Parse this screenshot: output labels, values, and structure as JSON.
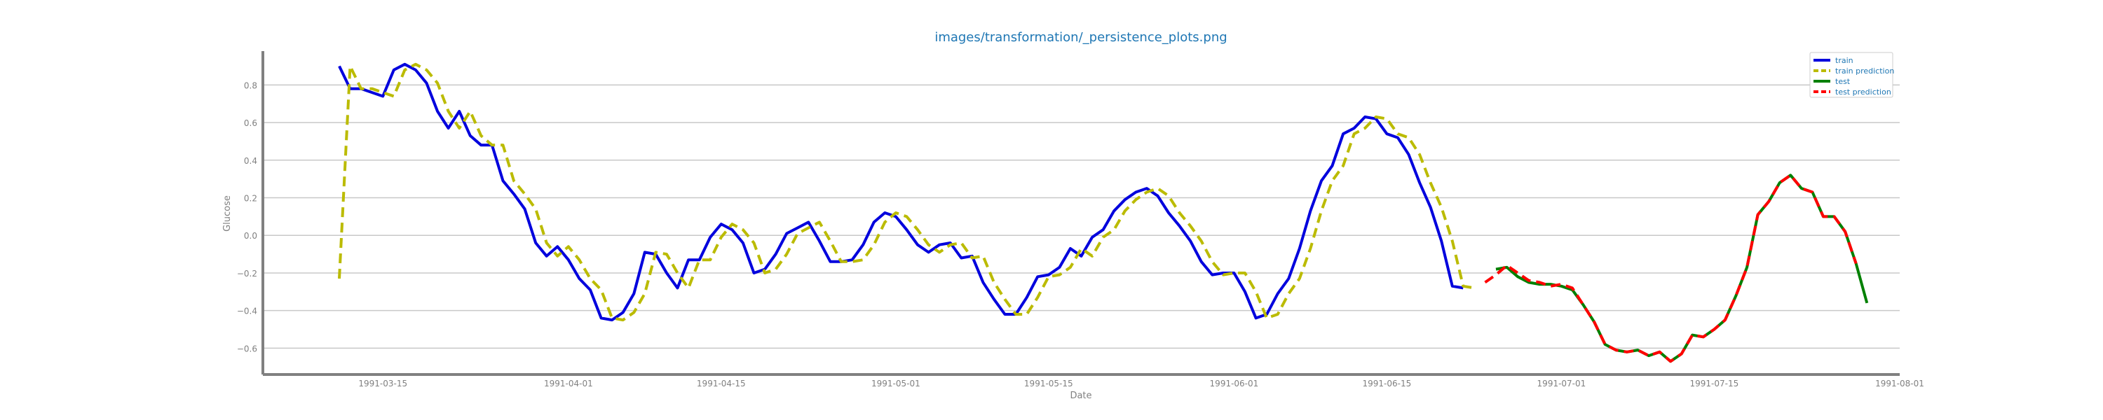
{
  "chart_data": {
    "type": "line",
    "title": "images/transformation/_persistence_plots.png",
    "xlabel": "Date",
    "ylabel": "Glucose",
    "ylim": [
      -0.74,
      0.98
    ],
    "xlim": [
      "1991-03-04",
      "1991-08-01"
    ],
    "xticks": [
      "1991-03-15",
      "1991-04-01",
      "1991-04-15",
      "1991-05-01",
      "1991-05-15",
      "1991-06-01",
      "1991-06-15",
      "1991-07-01",
      "1991-07-15",
      "1991-08-01"
    ],
    "yticks": [
      0.8,
      0.6,
      0.4,
      0.2,
      0.0,
      -0.2,
      -0.4,
      -0.6
    ],
    "ytick_labels": [
      "0.8",
      "0.6",
      "0.4",
      "0.2",
      "0.0",
      "−0.2",
      "−0.4",
      "−0.6"
    ],
    "grid": "horizontal",
    "legend_position": "top-right",
    "colors": {
      "title": "#1f77b4",
      "train": "#0000dd",
      "train_prediction": "#bbbb00",
      "test": "#008000",
      "test_prediction": "#ff0000",
      "grid": "#c8c8c8",
      "axis": "#808080"
    },
    "series": [
      {
        "name": "train",
        "key": "train",
        "dashed": false,
        "start": "1991-03-11",
        "y": [
          0.9,
          0.78,
          0.78,
          0.76,
          0.74,
          0.88,
          0.91,
          0.88,
          0.81,
          0.66,
          0.57,
          0.66,
          0.53,
          0.48,
          0.48,
          0.29,
          0.22,
          0.14,
          -0.04,
          -0.11,
          -0.06,
          -0.13,
          -0.23,
          -0.29,
          -0.44,
          -0.45,
          -0.41,
          -0.31,
          -0.09,
          -0.1,
          -0.2,
          -0.28,
          -0.13,
          -0.13,
          -0.01,
          0.06,
          0.03,
          -0.04,
          -0.2,
          -0.18,
          -0.1,
          0.01,
          0.04,
          0.07,
          -0.03,
          -0.14,
          -0.14,
          -0.13,
          -0.05,
          0.07,
          0.12,
          0.1,
          0.03,
          -0.05,
          -0.09,
          -0.05,
          -0.04,
          -0.12,
          -0.11,
          -0.25,
          -0.34,
          -0.42,
          -0.42,
          -0.33,
          -0.22,
          -0.21,
          -0.17,
          -0.07,
          -0.11,
          -0.01,
          0.03,
          0.13,
          0.19,
          0.23,
          0.25,
          0.21,
          0.12,
          0.05,
          -0.03,
          -0.14,
          -0.21,
          -0.2,
          -0.2,
          -0.3,
          -0.44,
          -0.42,
          -0.31,
          -0.23,
          -0.07,
          0.13,
          0.29,
          0.37,
          0.54,
          0.57,
          0.63,
          0.62,
          0.54,
          0.52,
          0.43,
          0.28,
          0.15,
          -0.03,
          -0.27,
          -0.28
        ]
      },
      {
        "name": "train prediction",
        "key": "train_prediction",
        "dashed": true,
        "start": "1991-03-11",
        "y": [
          -0.23,
          0.9,
          0.78,
          0.78,
          0.76,
          0.74,
          0.88,
          0.91,
          0.88,
          0.81,
          0.66,
          0.57,
          0.66,
          0.53,
          0.48,
          0.48,
          0.29,
          0.22,
          0.14,
          -0.04,
          -0.11,
          -0.06,
          -0.13,
          -0.23,
          -0.29,
          -0.44,
          -0.45,
          -0.41,
          -0.31,
          -0.09,
          -0.1,
          -0.2,
          -0.28,
          -0.13,
          -0.13,
          -0.01,
          0.06,
          0.03,
          -0.04,
          -0.2,
          -0.18,
          -0.1,
          0.01,
          0.04,
          0.07,
          -0.03,
          -0.14,
          -0.14,
          -0.13,
          -0.05,
          0.07,
          0.12,
          0.1,
          0.03,
          -0.05,
          -0.09,
          -0.05,
          -0.04,
          -0.12,
          -0.11,
          -0.25,
          -0.34,
          -0.42,
          -0.42,
          -0.33,
          -0.22,
          -0.21,
          -0.17,
          -0.07,
          -0.11,
          -0.01,
          0.03,
          0.13,
          0.19,
          0.23,
          0.25,
          0.21,
          0.12,
          0.05,
          -0.03,
          -0.14,
          -0.21,
          -0.2,
          -0.2,
          -0.3,
          -0.44,
          -0.42,
          -0.31,
          -0.23,
          -0.07,
          0.13,
          0.29,
          0.37,
          0.54,
          0.57,
          0.63,
          0.62,
          0.54,
          0.52,
          0.43,
          0.28,
          0.15,
          -0.03,
          -0.27,
          -0.28
        ]
      },
      {
        "name": "test",
        "key": "test",
        "dashed": false,
        "start": "1991-06-25",
        "y": [
          -0.18,
          -0.17,
          -0.22,
          -0.25,
          -0.26,
          -0.26,
          -0.27,
          -0.29,
          -0.37,
          -0.46,
          -0.58,
          -0.61,
          -0.62,
          -0.61,
          -0.64,
          -0.62,
          -0.67,
          -0.63,
          -0.53,
          -0.54,
          -0.5,
          -0.45,
          -0.32,
          -0.17,
          0.11,
          0.18,
          0.28,
          0.32,
          0.25,
          0.23,
          0.1,
          0.1,
          0.02,
          -0.15,
          -0.36
        ]
      },
      {
        "name": "test prediction",
        "key": "test_prediction",
        "dashed": true,
        "start": "1991-06-24",
        "y": [
          -0.25,
          -0.21,
          -0.16,
          -0.2,
          -0.24,
          -0.25,
          -0.27,
          -0.26,
          -0.28,
          -0.37,
          -0.46,
          -0.58,
          -0.61,
          -0.62,
          -0.61,
          -0.64,
          -0.62,
          -0.67,
          -0.63,
          -0.53,
          -0.54,
          -0.5,
          -0.45,
          -0.32,
          -0.17,
          0.11,
          0.18,
          0.28,
          0.32,
          0.25,
          0.23,
          0.1,
          0.1,
          0.02,
          -0.15
        ]
      }
    ]
  }
}
